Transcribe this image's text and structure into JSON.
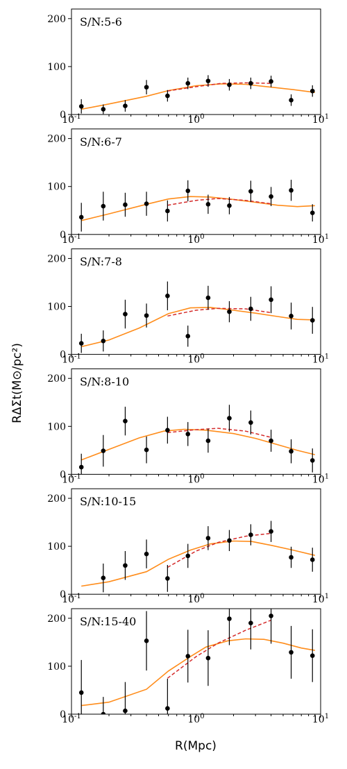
{
  "chart_data": {
    "type": "scatter",
    "xlabel": "R(Mpc)",
    "ylabel": "RΔΣt(M⊙/pc²)",
    "xscale": "log",
    "xlim": [
      0.1,
      10
    ],
    "ylim": [
      0,
      220
    ],
    "x_tick_labels": [
      {
        "base": "10",
        "exp": "-1"
      },
      {
        "base": "10",
        "exp": "0"
      },
      {
        "base": "10",
        "exp": "1"
      }
    ],
    "y_tick_labels": [
      "0",
      "100",
      "200"
    ],
    "colors": {
      "model_solid": "#ff8c1a",
      "model_dashed": "#d42a2a",
      "points": "#000000"
    },
    "panels": [
      {
        "label": "S/N:5-6",
        "points": [
          {
            "x": 0.12,
            "y": 17,
            "err": 15
          },
          {
            "x": 0.18,
            "y": 11,
            "err": 10
          },
          {
            "x": 0.27,
            "y": 18,
            "err": 12
          },
          {
            "x": 0.4,
            "y": 57,
            "err": 15
          },
          {
            "x": 0.59,
            "y": 39,
            "err": 12
          },
          {
            "x": 0.86,
            "y": 65,
            "err": 12
          },
          {
            "x": 1.25,
            "y": 70,
            "err": 12
          },
          {
            "x": 1.85,
            "y": 62,
            "err": 12
          },
          {
            "x": 2.75,
            "y": 65,
            "err": 12
          },
          {
            "x": 4.0,
            "y": 69,
            "err": 12
          },
          {
            "x": 5.8,
            "y": 30,
            "err": 12
          },
          {
            "x": 8.6,
            "y": 49,
            "err": 12
          }
        ],
        "solid": [
          [
            0.12,
            11
          ],
          [
            0.2,
            22
          ],
          [
            0.4,
            38
          ],
          [
            0.6,
            50
          ],
          [
            1.0,
            60
          ],
          [
            1.6,
            64
          ],
          [
            2.5,
            63
          ],
          [
            4.0,
            57
          ],
          [
            6.0,
            52
          ],
          [
            9.0,
            46
          ]
        ],
        "dashed": [
          [
            0.59,
            49
          ],
          [
            1.0,
            58
          ],
          [
            1.6,
            65
          ],
          [
            2.5,
            66
          ],
          [
            4.0,
            65
          ]
        ]
      },
      {
        "label": "S/N:6-7",
        "points": [
          {
            "x": 0.12,
            "y": 36,
            "err": 30
          },
          {
            "x": 0.18,
            "y": 59,
            "err": 30
          },
          {
            "x": 0.27,
            "y": 62,
            "err": 25
          },
          {
            "x": 0.4,
            "y": 64,
            "err": 25
          },
          {
            "x": 0.59,
            "y": 49,
            "err": 22
          },
          {
            "x": 0.86,
            "y": 91,
            "err": 22
          },
          {
            "x": 1.25,
            "y": 63,
            "err": 20
          },
          {
            "x": 1.85,
            "y": 60,
            "err": 18
          },
          {
            "x": 2.75,
            "y": 90,
            "err": 22
          },
          {
            "x": 4.0,
            "y": 79,
            "err": 20
          },
          {
            "x": 5.8,
            "y": 92,
            "err": 22
          },
          {
            "x": 8.6,
            "y": 45,
            "err": 18
          }
        ],
        "solid": [
          [
            0.12,
            29
          ],
          [
            0.2,
            43
          ],
          [
            0.4,
            63
          ],
          [
            0.6,
            74
          ],
          [
            0.9,
            79
          ],
          [
            1.3,
            78
          ],
          [
            2.0,
            73
          ],
          [
            3.0,
            67
          ],
          [
            4.5,
            61
          ],
          [
            6.5,
            58
          ],
          [
            9.0,
            60
          ]
        ],
        "dashed": [
          [
            0.59,
            61
          ],
          [
            1.0,
            71
          ],
          [
            1.5,
            75
          ],
          [
            2.5,
            71
          ],
          [
            4.0,
            64
          ]
        ]
      },
      {
        "label": "S/N:7-8",
        "points": [
          {
            "x": 0.12,
            "y": 23,
            "err": 20
          },
          {
            "x": 0.18,
            "y": 28,
            "err": 22
          },
          {
            "x": 0.27,
            "y": 84,
            "err": 30
          },
          {
            "x": 0.4,
            "y": 81,
            "err": 25
          },
          {
            "x": 0.59,
            "y": 122,
            "err": 30
          },
          {
            "x": 0.86,
            "y": 38,
            "err": 22
          },
          {
            "x": 1.25,
            "y": 118,
            "err": 25
          },
          {
            "x": 1.85,
            "y": 89,
            "err": 22
          },
          {
            "x": 2.75,
            "y": 95,
            "err": 25
          },
          {
            "x": 4.0,
            "y": 114,
            "err": 28
          },
          {
            "x": 5.8,
            "y": 80,
            "err": 28
          },
          {
            "x": 8.6,
            "y": 71,
            "err": 28
          }
        ],
        "solid": [
          [
            0.12,
            16
          ],
          [
            0.2,
            30
          ],
          [
            0.35,
            55
          ],
          [
            0.6,
            85
          ],
          [
            0.9,
            97
          ],
          [
            1.3,
            98
          ],
          [
            2.0,
            92
          ],
          [
            3.0,
            86
          ],
          [
            4.5,
            79
          ],
          [
            6.5,
            73
          ],
          [
            9.0,
            72
          ]
        ],
        "dashed": [
          [
            0.59,
            80
          ],
          [
            1.0,
            92
          ],
          [
            1.5,
            96
          ],
          [
            2.5,
            95
          ],
          [
            4.0,
            87
          ]
        ]
      },
      {
        "label": "S/N:8-10",
        "points": [
          {
            "x": 0.12,
            "y": 15,
            "err": 28
          },
          {
            "x": 0.18,
            "y": 49,
            "err": 33
          },
          {
            "x": 0.27,
            "y": 111,
            "err": 30
          },
          {
            "x": 0.4,
            "y": 51,
            "err": 28
          },
          {
            "x": 0.59,
            "y": 92,
            "err": 28
          },
          {
            "x": 0.86,
            "y": 84,
            "err": 25
          },
          {
            "x": 1.25,
            "y": 70,
            "err": 25
          },
          {
            "x": 1.85,
            "y": 117,
            "err": 28
          },
          {
            "x": 2.75,
            "y": 108,
            "err": 25
          },
          {
            "x": 4.0,
            "y": 70,
            "err": 23
          },
          {
            "x": 5.8,
            "y": 48,
            "err": 25
          },
          {
            "x": 8.6,
            "y": 29,
            "err": 25
          }
        ],
        "solid": [
          [
            0.12,
            30
          ],
          [
            0.2,
            52
          ],
          [
            0.35,
            76
          ],
          [
            0.55,
            90
          ],
          [
            0.8,
            94
          ],
          [
            1.2,
            92
          ],
          [
            2.0,
            85
          ],
          [
            3.0,
            75
          ],
          [
            4.5,
            62
          ],
          [
            6.5,
            50
          ],
          [
            9.0,
            41
          ]
        ],
        "dashed": [
          [
            0.59,
            87
          ],
          [
            1.0,
            93
          ],
          [
            1.5,
            96
          ],
          [
            2.5,
            90
          ],
          [
            4.0,
            77
          ]
        ]
      },
      {
        "label": "S/N:10-15",
        "points": [
          {
            "x": 0.18,
            "y": 34,
            "err": 30
          },
          {
            "x": 0.27,
            "y": 60,
            "err": 30
          },
          {
            "x": 0.4,
            "y": 84,
            "err": 30
          },
          {
            "x": 0.59,
            "y": 33,
            "err": 28
          },
          {
            "x": 0.86,
            "y": 80,
            "err": 25
          },
          {
            "x": 1.25,
            "y": 117,
            "err": 25
          },
          {
            "x": 1.85,
            "y": 112,
            "err": 22
          },
          {
            "x": 2.75,
            "y": 124,
            "err": 22
          },
          {
            "x": 4.0,
            "y": 131,
            "err": 22
          },
          {
            "x": 5.8,
            "y": 77,
            "err": 22
          },
          {
            "x": 8.6,
            "y": 72,
            "err": 25
          }
        ],
        "solid": [
          [
            0.12,
            17
          ],
          [
            0.2,
            26
          ],
          [
            0.4,
            47
          ],
          [
            0.6,
            73
          ],
          [
            0.9,
            92
          ],
          [
            1.3,
            105
          ],
          [
            2.0,
            111
          ],
          [
            2.8,
            110
          ],
          [
            4.0,
            102
          ],
          [
            6.0,
            92
          ],
          [
            9.0,
            81
          ]
        ],
        "dashed": [
          [
            0.59,
            56
          ],
          [
            1.0,
            90
          ],
          [
            1.5,
            108
          ],
          [
            2.5,
            121
          ],
          [
            4.0,
            127
          ]
        ]
      },
      {
        "label": "S/N:15-40",
        "points": [
          {
            "x": 0.12,
            "y": 45,
            "err": 68
          },
          {
            "x": 0.18,
            "y": 0,
            "err": 36
          },
          {
            "x": 0.27,
            "y": 7,
            "err": 60
          },
          {
            "x": 0.4,
            "y": 153,
            "err": 62
          },
          {
            "x": 0.59,
            "y": 12,
            "err": 62
          },
          {
            "x": 0.86,
            "y": 121,
            "err": 55
          },
          {
            "x": 1.25,
            "y": 117,
            "err": 58
          },
          {
            "x": 1.85,
            "y": 199,
            "err": 55
          },
          {
            "x": 2.75,
            "y": 190,
            "err": 55
          },
          {
            "x": 4.0,
            "y": 205,
            "err": 58
          },
          {
            "x": 5.8,
            "y": 129,
            "err": 55
          },
          {
            "x": 8.6,
            "y": 122,
            "err": 55
          }
        ],
        "solid": [
          [
            0.12,
            18
          ],
          [
            0.2,
            25
          ],
          [
            0.4,
            52
          ],
          [
            0.6,
            90
          ],
          [
            0.9,
            120
          ],
          [
            1.2,
            140
          ],
          [
            1.8,
            153
          ],
          [
            2.5,
            157
          ],
          [
            3.5,
            156
          ],
          [
            5.0,
            148
          ],
          [
            7.0,
            138
          ],
          [
            9.0,
            133
          ]
        ],
        "dashed": [
          [
            0.59,
            75
          ],
          [
            1.0,
            120
          ],
          [
            1.5,
            148
          ],
          [
            2.5,
            175
          ],
          [
            4.0,
            196
          ]
        ]
      }
    ]
  }
}
